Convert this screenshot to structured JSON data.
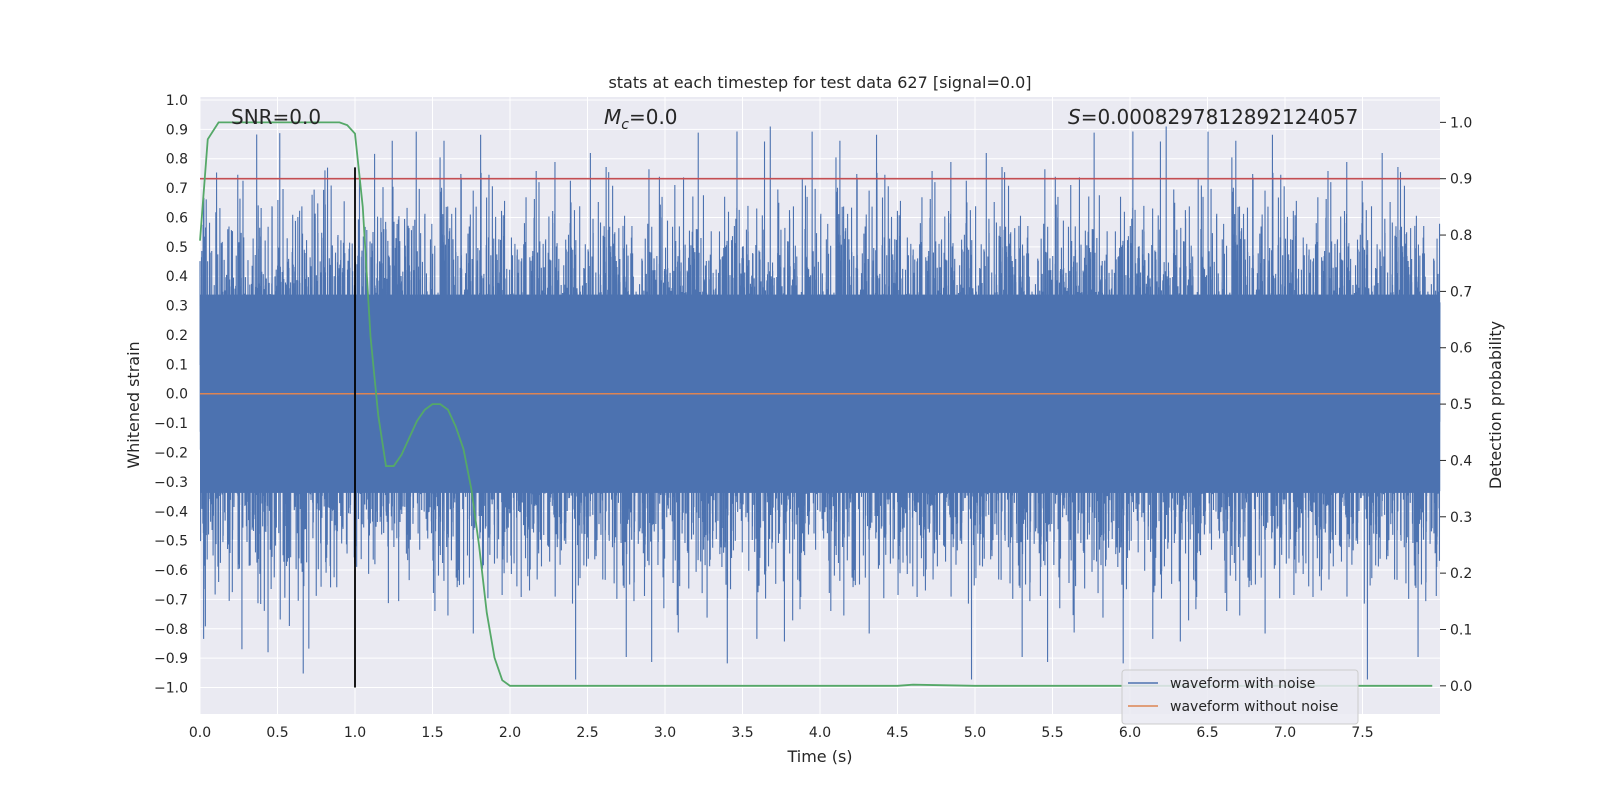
{
  "chart_data": {
    "type": "line",
    "title": "stats at each timestep for test data 627 [signal=0.0]",
    "xlabel": "Time (s)",
    "ylabel": "Whitened strain",
    "y2label": "Detection probability",
    "xlim": [
      0.0,
      8.0
    ],
    "ylim": [
      -1.09,
      1.01
    ],
    "y2lim": [
      -0.05,
      1.045
    ],
    "xticks": [
      "0.0",
      "0.5",
      "1.0",
      "1.5",
      "2.0",
      "2.5",
      "3.0",
      "3.5",
      "4.0",
      "4.5",
      "5.0",
      "5.5",
      "6.0",
      "6.5",
      "7.0",
      "7.5"
    ],
    "yticks": [
      "1.0",
      "0.9",
      "0.8",
      "0.7",
      "0.6",
      "0.5",
      "0.4",
      "0.3",
      "0.2",
      "0.1",
      "0.0",
      "−0.1",
      "−0.2",
      "−0.3",
      "−0.4",
      "−0.5",
      "−0.6",
      "−0.7",
      "−0.8",
      "−0.9",
      "−1.0"
    ],
    "y2ticks": [
      "1.0",
      "0.9",
      "0.8",
      "0.7",
      "0.6",
      "0.5",
      "0.4",
      "0.3",
      "0.2",
      "0.1",
      "0.0"
    ],
    "annotations": {
      "snr": "SNR=0.0",
      "mc_symbol": "M",
      "mc_sub": "c",
      "mc_value": "=0.0",
      "s_symbol": "S",
      "s_value": "=0.0008297812892124057"
    },
    "series": [
      {
        "name": "waveform with noise",
        "color": "#4c72b0",
        "type": "noise",
        "band_min": -0.45,
        "band_max": 0.45,
        "peak_max": 0.91,
        "peak_min": -1.0,
        "sample_rate": 2048
      },
      {
        "name": "waveform without noise",
        "color": "#dd8452",
        "x": [
          0.0,
          8.0
        ],
        "y": [
          0.0,
          0.0
        ]
      },
      {
        "name": "detection probability",
        "color": "#55a868",
        "axis": "right",
        "x": [
          0.0,
          0.05,
          0.12,
          0.2,
          0.4,
          0.6,
          0.8,
          0.9,
          0.95,
          1.0,
          1.05,
          1.1,
          1.15,
          1.2,
          1.25,
          1.3,
          1.35,
          1.4,
          1.45,
          1.5,
          1.55,
          1.6,
          1.65,
          1.7,
          1.75,
          1.8,
          1.85,
          1.9,
          1.95,
          2.0,
          2.5,
          3.0,
          3.5,
          4.0,
          4.5,
          4.6,
          5.0,
          5.5,
          6.0,
          6.5,
          7.0,
          7.5,
          7.95
        ],
        "y": [
          0.79,
          0.97,
          1.0,
          1.0,
          1.0,
          1.0,
          1.0,
          1.0,
          0.995,
          0.98,
          0.85,
          0.62,
          0.48,
          0.39,
          0.39,
          0.41,
          0.44,
          0.47,
          0.49,
          0.5,
          0.5,
          0.49,
          0.46,
          0.42,
          0.35,
          0.25,
          0.13,
          0.05,
          0.01,
          0.0,
          0.0,
          0.0,
          0.0,
          0.0,
          0.0,
          0.002,
          0.0,
          0.0,
          0.0,
          0.0,
          0.0,
          0.0,
          0.0
        ]
      },
      {
        "name": "threshold",
        "color": "#c44e52",
        "axis": "right",
        "value": 0.9
      },
      {
        "name": "marker",
        "color": "#000000",
        "x": 1.0,
        "y_from": -1.0,
        "y_to": 0.92
      }
    ],
    "legend": {
      "position": "lower-right",
      "entries": [
        {
          "label": "waveform with noise",
          "color": "#4c72b0"
        },
        {
          "label": "waveform without noise",
          "color": "#dd8452"
        }
      ]
    },
    "grid": true,
    "colors": {
      "plot_bg": "#eaeaf2",
      "grid": "#ffffff"
    }
  }
}
